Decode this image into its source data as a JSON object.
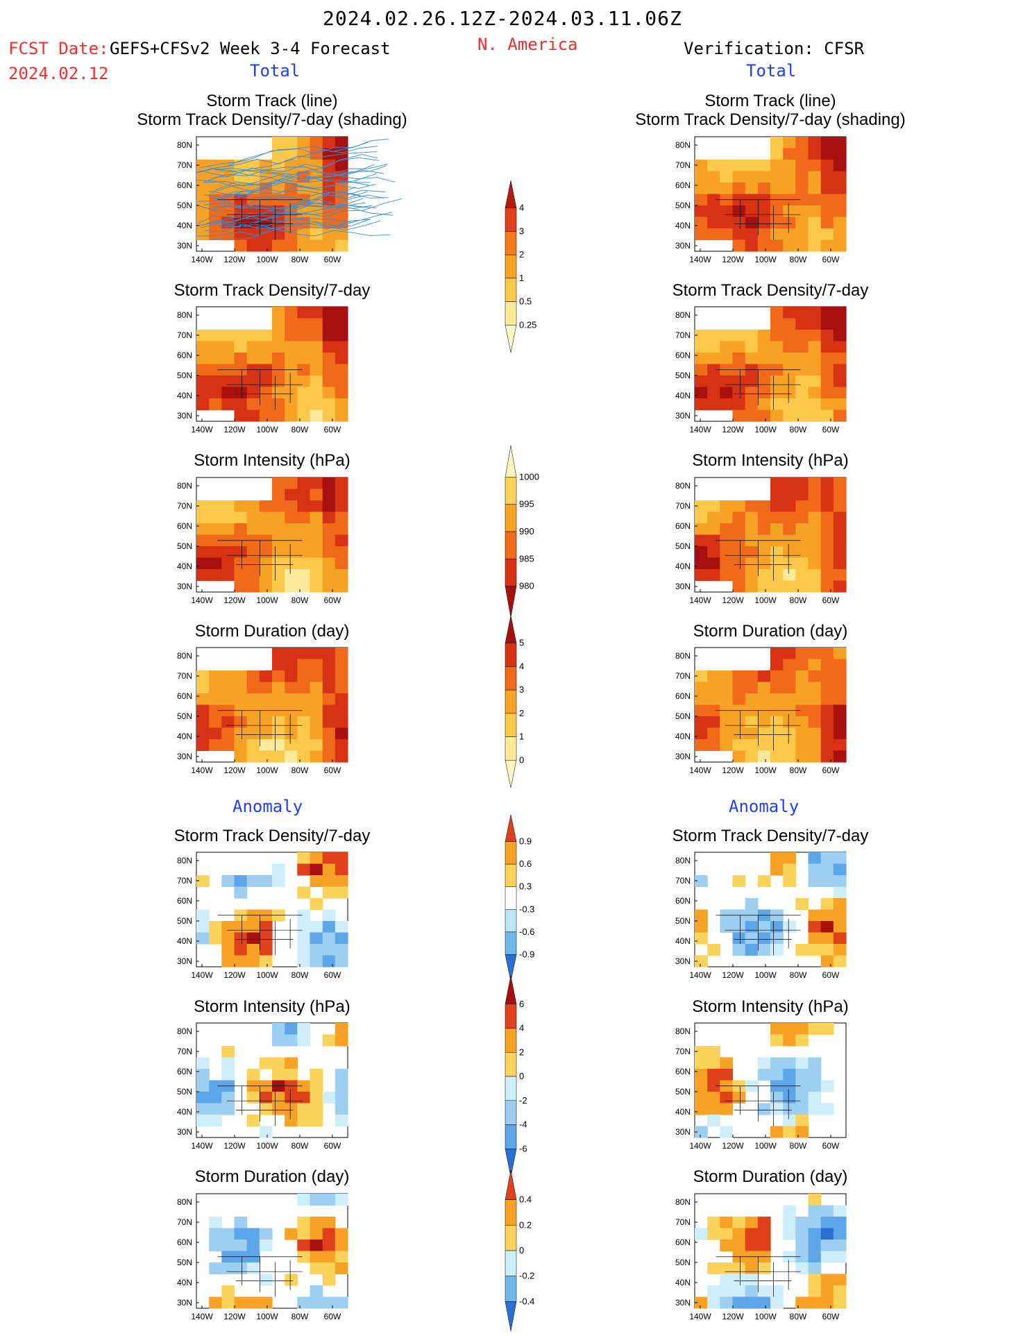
{
  "header": {
    "date_range": "2024.02.26.12Z-2024.03.11.06Z",
    "fcst_label": "FCST Date:",
    "fcst_model": "GEFS+CFSv2 Week 3-4 Forecast",
    "fcst_date": "2024.02.12",
    "region": "N. America",
    "verification": "Verification: CFSR",
    "left_total": "Total",
    "right_total": "Total",
    "left_anomaly": "Anomaly",
    "right_anomaly": "Anomaly"
  },
  "map_axes": {
    "lat_labels": [
      "80N",
      "70N",
      "60N",
      "50N",
      "40N",
      "30N"
    ],
    "lon_labels": [
      "140W",
      "120W",
      "100W",
      "80W",
      "60W"
    ]
  },
  "panels": {
    "left": [
      {
        "title_lines": [
          "Storm Track (line)",
          "Storm Track Density/7-day (shading)"
        ],
        "field": "track_density_lines"
      },
      {
        "title_lines": [
          "Storm Track Density/7-day"
        ],
        "field": "track_density"
      },
      {
        "title_lines": [
          "Storm Intensity (hPa)"
        ],
        "field": "intensity"
      },
      {
        "title_lines": [
          "Storm Duration (day)"
        ],
        "field": "duration"
      },
      {
        "title_lines": [
          "Storm Track Density/7-day"
        ],
        "field": "anom_density"
      },
      {
        "title_lines": [
          "Storm Intensity (hPa)"
        ],
        "field": "anom_intensity"
      },
      {
        "title_lines": [
          "Storm Duration (day)"
        ],
        "field": "anom_duration"
      }
    ],
    "right": [
      {
        "title_lines": [
          "Storm Track (line)",
          "Storm Track Density/7-day (shading)"
        ],
        "field": "track_density_obs"
      },
      {
        "title_lines": [
          "Storm Track Density/7-day"
        ],
        "field": "track_density_obs"
      },
      {
        "title_lines": [
          "Storm Intensity (hPa)"
        ],
        "field": "intensity_obs"
      },
      {
        "title_lines": [
          "Storm Duration (day)"
        ],
        "field": "duration_obs"
      },
      {
        "title_lines": [
          "Storm Track Density/7-day"
        ],
        "field": "anom_density_obs"
      },
      {
        "title_lines": [
          "Storm Intensity (hPa)"
        ],
        "field": "anom_intensity_obs"
      },
      {
        "title_lines": [
          "Storm Duration (day)"
        ],
        "field": "anom_duration_obs"
      }
    ]
  },
  "colorbars": [
    {
      "name": "density",
      "labels": [
        "4",
        "3",
        "2",
        "1",
        "0.5",
        "0.25"
      ],
      "colors": [
        "#b71a0f",
        "#e0401a",
        "#f47a1c",
        "#f7a224",
        "#fbc84a",
        "#fde99a",
        "#fff7c4"
      ]
    },
    {
      "name": "intensity",
      "labels": [
        "1000",
        "995",
        "990",
        "985",
        "980"
      ],
      "colors": [
        "#fff4bf",
        "#fbd25a",
        "#f7a224",
        "#f06a1a",
        "#d83214",
        "#a81010"
      ]
    },
    {
      "name": "duration",
      "labels": [
        "5",
        "4",
        "3",
        "2",
        "1",
        "0"
      ],
      "colors": [
        "#a81010",
        "#d83214",
        "#f06a1a",
        "#f7a224",
        "#fbc84a",
        "#fde99a",
        "#fff7c4"
      ]
    },
    {
      "name": "anom_density",
      "labels": [
        "0.9",
        "0.6",
        "0.3",
        "-0.3",
        "-0.6",
        "-0.9"
      ],
      "colors": [
        "#e0401a",
        "#f7a224",
        "#fbd25a",
        "#ffffff",
        "#b9e6f7",
        "#6fb8ea",
        "#2a6fd6"
      ]
    },
    {
      "name": "anom_intensity",
      "labels": [
        "6",
        "4",
        "2",
        "0",
        "-2",
        "-4",
        "-6"
      ],
      "colors": [
        "#a81010",
        "#e0401a",
        "#f7a224",
        "#fbd25a",
        "#cdeefa",
        "#9ccff2",
        "#5ea6ea",
        "#2a6fd6"
      ]
    },
    {
      "name": "anom_duration",
      "labels": [
        "0.4",
        "0.2",
        "0",
        "-0.2",
        "-0.4"
      ],
      "colors": [
        "#e0401a",
        "#f7a224",
        "#fbd25a",
        "#cdeefa",
        "#6fb8ea",
        "#2a6fd6"
      ]
    }
  ],
  "colors": {
    "header_red": "#ff2a2a",
    "header_blue": "#1f3dff",
    "track_line": "#2f8fe0"
  }
}
